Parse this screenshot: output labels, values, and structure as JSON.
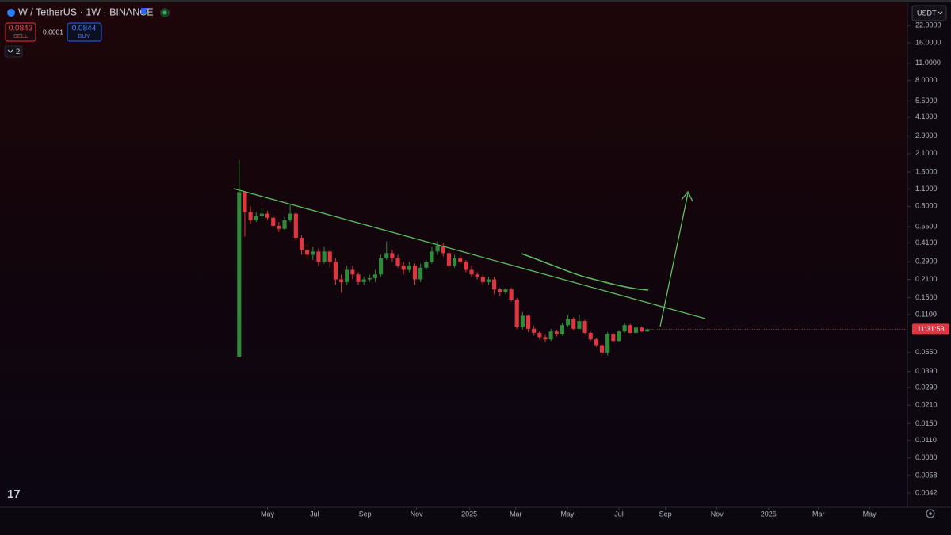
{
  "ui": {
    "symbol": "W / TetherUS · 1W · BINANCE",
    "sell_price": 0.0843,
    "sell_label": "SELL",
    "spread": 0.0001,
    "buy_price": 0.0844,
    "buy_label": "BUY",
    "indicators": 2,
    "currency": "USDT",
    "countdown": "11:31:53"
  },
  "chart_data": {
    "type": "candlestick",
    "log_scale": true,
    "up_color": "#2e8b3a",
    "down_color": "#e0363f",
    "open": [
      0.051,
      1.04,
      0.72,
      0.62,
      0.67,
      0.7,
      0.65,
      0.56,
      0.53,
      0.62,
      0.7,
      0.45,
      0.36,
      0.33,
      0.35,
      0.29,
      0.35,
      0.29,
      0.21,
      0.2,
      0.25,
      0.23,
      0.2,
      0.21,
      0.215,
      0.23,
      0.31,
      0.34,
      0.31,
      0.27,
      0.25,
      0.27,
      0.21,
      0.26,
      0.29,
      0.35,
      0.39,
      0.34,
      0.27,
      0.31,
      0.29,
      0.25,
      0.23,
      0.22,
      0.2,
      0.21,
      0.175,
      0.167,
      0.175,
      0.145,
      0.088,
      0.108,
      0.085,
      0.079,
      0.073,
      0.07,
      0.081,
      0.077,
      0.091,
      0.102,
      0.085,
      0.098,
      0.079,
      0.07,
      0.063,
      0.055,
      0.077,
      0.068,
      0.081,
      0.091,
      0.079,
      0.087,
      0.081
    ],
    "high": [
      1.86,
      1.06,
      0.8,
      0.72,
      0.78,
      0.74,
      0.68,
      0.6,
      0.66,
      0.82,
      0.72,
      0.47,
      0.4,
      0.38,
      0.37,
      0.38,
      0.36,
      0.31,
      0.23,
      0.27,
      0.27,
      0.24,
      0.22,
      0.23,
      0.25,
      0.33,
      0.42,
      0.36,
      0.33,
      0.29,
      0.29,
      0.28,
      0.28,
      0.3,
      0.38,
      0.42,
      0.41,
      0.36,
      0.33,
      0.33,
      0.3,
      0.27,
      0.24,
      0.23,
      0.22,
      0.22,
      0.18,
      0.18,
      0.18,
      0.15,
      0.115,
      0.11,
      0.09,
      0.082,
      0.076,
      0.085,
      0.084,
      0.095,
      0.11,
      0.105,
      0.11,
      0.1,
      0.081,
      0.072,
      0.066,
      0.08,
      0.079,
      0.083,
      0.095,
      0.093,
      0.09,
      0.089,
      0.086
    ],
    "low": [
      0.051,
      0.46,
      0.58,
      0.6,
      0.64,
      0.62,
      0.54,
      0.5,
      0.52,
      0.6,
      0.43,
      0.33,
      0.31,
      0.3,
      0.27,
      0.28,
      0.26,
      0.19,
      0.165,
      0.19,
      0.21,
      0.19,
      0.19,
      0.2,
      0.2,
      0.22,
      0.3,
      0.29,
      0.26,
      0.23,
      0.24,
      0.19,
      0.2,
      0.25,
      0.28,
      0.33,
      0.32,
      0.26,
      0.26,
      0.28,
      0.24,
      0.22,
      0.21,
      0.19,
      0.19,
      0.16,
      0.155,
      0.16,
      0.14,
      0.085,
      0.084,
      0.08,
      0.075,
      0.07,
      0.066,
      0.068,
      0.074,
      0.075,
      0.088,
      0.083,
      0.084,
      0.077,
      0.068,
      0.061,
      0.052,
      0.052,
      0.066,
      0.067,
      0.079,
      0.078,
      0.077,
      0.08,
      0.08
    ],
    "close": [
      1.04,
      0.72,
      0.62,
      0.67,
      0.7,
      0.65,
      0.56,
      0.53,
      0.62,
      0.7,
      0.45,
      0.36,
      0.33,
      0.35,
      0.29,
      0.35,
      0.29,
      0.21,
      0.2,
      0.25,
      0.23,
      0.2,
      0.21,
      0.215,
      0.23,
      0.31,
      0.34,
      0.31,
      0.27,
      0.25,
      0.27,
      0.21,
      0.26,
      0.29,
      0.35,
      0.39,
      0.34,
      0.27,
      0.31,
      0.29,
      0.25,
      0.23,
      0.22,
      0.2,
      0.21,
      0.175,
      0.167,
      0.175,
      0.145,
      0.088,
      0.108,
      0.085,
      0.079,
      0.073,
      0.07,
      0.081,
      0.077,
      0.091,
      0.102,
      0.085,
      0.098,
      0.079,
      0.07,
      0.063,
      0.055,
      0.077,
      0.068,
      0.081,
      0.091,
      0.079,
      0.087,
      0.081,
      0.0843
    ],
    "ylim": [
      0.00324,
      35
    ],
    "yticks": [
      {
        "value": 22,
        "label": "22.0000"
      },
      {
        "value": 16,
        "label": "16.0000"
      },
      {
        "value": 11,
        "label": "11.0000"
      },
      {
        "value": 8,
        "label": "8.0000"
      },
      {
        "value": 5.5,
        "label": "5.5000"
      },
      {
        "value": 4.1,
        "label": "4.1000"
      },
      {
        "value": 2.9,
        "label": "2.9000"
      },
      {
        "value": 2.1,
        "label": "2.1000"
      },
      {
        "value": 1.5,
        "label": "1.5000"
      },
      {
        "value": 1.1,
        "label": "1.1000"
      },
      {
        "value": 0.8,
        "label": "0.8000"
      },
      {
        "value": 0.55,
        "label": "0.5500"
      },
      {
        "value": 0.41,
        "label": "0.4100"
      },
      {
        "value": 0.29,
        "label": "0.2900"
      },
      {
        "value": 0.21,
        "label": "0.2100"
      },
      {
        "value": 0.15,
        "label": "0.1500"
      },
      {
        "value": 0.11,
        "label": "0.1100"
      },
      {
        "value": 0.055,
        "label": "0.0550"
      },
      {
        "value": 0.039,
        "label": "0.0390"
      },
      {
        "value": 0.029,
        "label": "0.0290"
      },
      {
        "value": 0.021,
        "label": "0.0210"
      },
      {
        "value": 0.015,
        "label": "0.0150"
      },
      {
        "value": 0.011,
        "label": "0.0110"
      },
      {
        "value": 0.008,
        "label": "0.0080"
      },
      {
        "value": 0.0058,
        "label": "0.0058"
      },
      {
        "value": 0.0042,
        "label": "0.0042"
      }
    ],
    "xlim": [
      -42.2,
      117.9
    ],
    "xticks": [
      {
        "value": 5.0,
        "label": "May"
      },
      {
        "value": 13.3,
        "label": "Jul"
      },
      {
        "value": 22.2,
        "label": "Sep"
      },
      {
        "value": 31.3,
        "label": "Nov"
      },
      {
        "value": 40.6,
        "label": "2025"
      },
      {
        "value": 48.8,
        "label": "Mar"
      },
      {
        "value": 57.9,
        "label": "May"
      },
      {
        "value": 67.0,
        "label": "Jul"
      },
      {
        "value": 75.2,
        "label": "Sep"
      },
      {
        "value": 84.3,
        "label": "Nov"
      },
      {
        "value": 93.4,
        "label": "2026"
      },
      {
        "value": 102.2,
        "label": "Mar"
      },
      {
        "value": 111.2,
        "label": "May"
      }
    ]
  }
}
